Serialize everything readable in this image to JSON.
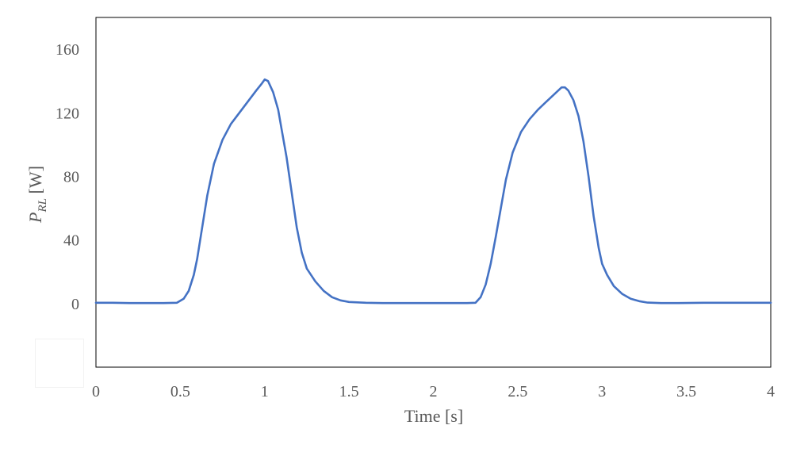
{
  "chart_data": {
    "type": "line",
    "title": "",
    "xlabel": "Time [s]",
    "ylabel": {
      "main": "P",
      "subscript": "RL",
      "unit": " [W]"
    },
    "xlim": [
      0,
      4
    ],
    "ylim": [
      -40,
      180
    ],
    "x_ticks": [
      0,
      0.5,
      1,
      1.5,
      2,
      2.5,
      3,
      3.5,
      4
    ],
    "x_tick_labels": [
      "0",
      "0.5",
      "1",
      "1.5",
      "2",
      "2.5",
      "3",
      "3.5",
      "4"
    ],
    "y_ticks": [
      0,
      40,
      80,
      120,
      160
    ],
    "y_tick_labels": [
      "0",
      "40",
      "80",
      "120",
      "160"
    ],
    "grid": false,
    "legend": "none",
    "series": [
      {
        "color": "#4472C4",
        "x": [
          0,
          0.1,
          0.2,
          0.3,
          0.4,
          0.48,
          0.52,
          0.55,
          0.58,
          0.6,
          0.63,
          0.66,
          0.7,
          0.75,
          0.8,
          0.85,
          0.9,
          0.95,
          0.98,
          1.0,
          1.02,
          1.05,
          1.08,
          1.1,
          1.13,
          1.16,
          1.19,
          1.22,
          1.25,
          1.3,
          1.35,
          1.4,
          1.45,
          1.5,
          1.6,
          1.7,
          1.8,
          1.9,
          2.0,
          2.1,
          2.2,
          2.25,
          2.28,
          2.31,
          2.34,
          2.37,
          2.4,
          2.43,
          2.47,
          2.52,
          2.57,
          2.62,
          2.67,
          2.72,
          2.76,
          2.78,
          2.8,
          2.83,
          2.86,
          2.89,
          2.92,
          2.95,
          2.98,
          3.0,
          3.03,
          3.07,
          3.12,
          3.17,
          3.22,
          3.27,
          3.35,
          3.45,
          3.6,
          3.7,
          3.8,
          3.9,
          4.0
        ],
        "y": [
          0.5,
          0.5,
          0.3,
          0.3,
          0.3,
          0.5,
          3,
          8,
          18,
          28,
          48,
          68,
          88,
          103,
          113,
          120,
          127,
          134,
          138,
          141,
          140,
          133,
          122,
          110,
          92,
          70,
          48,
          32,
          22,
          14,
          8,
          4,
          2,
          1,
          0.5,
          0.3,
          0.3,
          0.3,
          0.3,
          0.3,
          0.3,
          0.5,
          4,
          12,
          25,
          42,
          60,
          78,
          95,
          108,
          116,
          122,
          127,
          132,
          136,
          136,
          134,
          128,
          118,
          102,
          80,
          55,
          35,
          25,
          18,
          11,
          6,
          3,
          1.5,
          0.6,
          0.3,
          0.3,
          0.5,
          0.5,
          0.5,
          0.5,
          0.5
        ]
      }
    ]
  }
}
